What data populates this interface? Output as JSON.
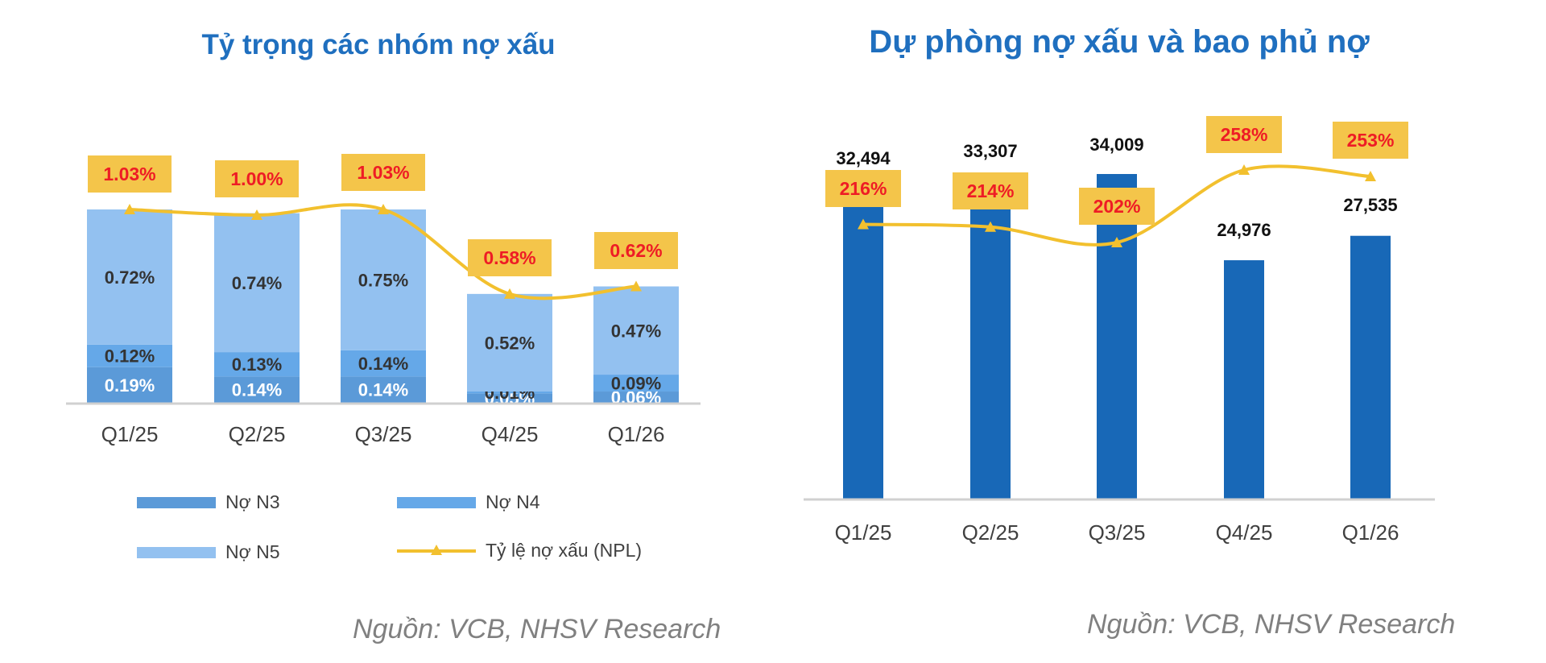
{
  "colors": {
    "n3": "#5b9ad8",
    "n4": "#65a8e8",
    "n5": "#93c1f0",
    "bar_dark": "#1868b7",
    "line": "#f2c02e",
    "label_box": "#f4c54a",
    "label_text_red": "#ee1c25",
    "title_blue": "#1f6fbf",
    "axis": "#d0d0d0"
  },
  "left": {
    "title": "Tỷ trọng các nhóm nợ xấu",
    "source": "Nguồn: VCB, NHSV Research",
    "legend": {
      "n3": "Nợ N3",
      "n4": "Nợ N4",
      "n5": "Nợ N5",
      "npl": "Tỷ lệ nợ xấu (NPL)"
    }
  },
  "right": {
    "title": "Dự phòng  nợ xấu và bao phủ nợ",
    "source": "Nguồn: VCB, NHSV Research"
  },
  "chart_data": [
    {
      "type": "bar",
      "stacked": true,
      "title": "Tỷ trọng các nhóm nợ xấu",
      "categories": [
        "Q1/25",
        "Q2/25",
        "Q3/25",
        "Q4/25",
        "Q1/26"
      ],
      "series": [
        {
          "name": "Nợ N3",
          "values": [
            0.19,
            0.14,
            0.14,
            0.05,
            0.06
          ],
          "labels": [
            "0.19%",
            "0.14%",
            "0.14%",
            "0.05%",
            "0.06%"
          ]
        },
        {
          "name": "Nợ N4",
          "values": [
            0.12,
            0.13,
            0.14,
            0.01,
            0.09
          ],
          "labels": [
            "0.12%",
            "0.13%",
            "0.14%",
            "0.01%",
            "0.09%"
          ]
        },
        {
          "name": "Nợ N5",
          "values": [
            0.72,
            0.74,
            0.75,
            0.52,
            0.47
          ],
          "labels": [
            "0.72%",
            "0.74%",
            "0.75%",
            "0.52%",
            "0.47%"
          ]
        }
      ],
      "line": {
        "name": "Tỷ lệ nợ xấu (NPL)",
        "values": [
          1.03,
          1.0,
          1.03,
          0.58,
          0.62
        ],
        "labels": [
          "1.03%",
          "1.00%",
          "1.03%",
          "0.58%",
          "0.62%"
        ]
      },
      "ylim": [
        0,
        1.2
      ],
      "legend": "bottom",
      "grid": false
    },
    {
      "type": "bar",
      "title": "Dự phòng  nợ xấu và bao phủ nợ",
      "categories": [
        "Q1/25",
        "Q2/25",
        "Q3/25",
        "Q4/25",
        "Q1/26"
      ],
      "series": [
        {
          "values": [
            32494,
            33307,
            34009,
            24976,
            27535
          ],
          "labels": [
            "32,494",
            "33,307",
            "34,009",
            "24,976",
            "27,535"
          ]
        }
      ],
      "line": {
        "values": [
          216,
          214,
          202,
          258,
          253
        ],
        "labels": [
          "216%",
          "214%",
          "202%",
          "258%",
          "253%"
        ]
      },
      "ylim": [
        0,
        38000
      ],
      "line_ylim": [
        0,
        500
      ],
      "legend": "none",
      "grid": false
    }
  ]
}
